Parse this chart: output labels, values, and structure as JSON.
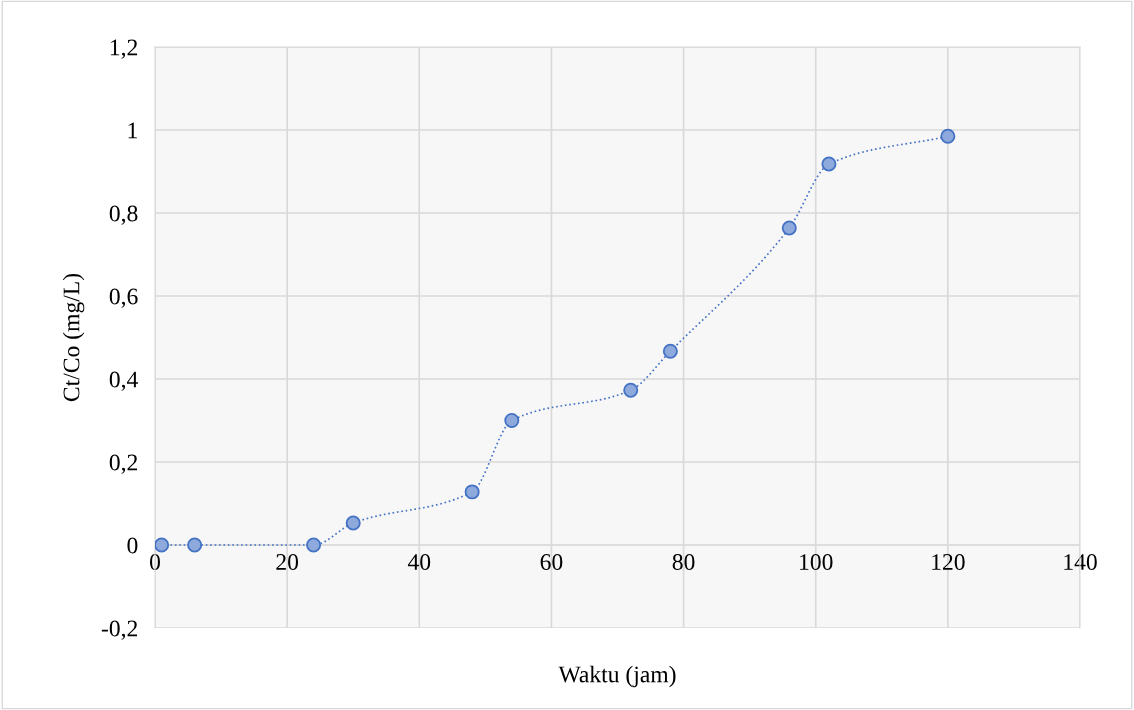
{
  "chart_data": {
    "type": "line",
    "xlabel": "Waktu (jam)",
    "ylabel": "Ct/Co (mg/L)",
    "x": [
      1,
      6,
      24,
      30,
      48,
      54,
      72,
      78,
      96,
      102,
      120
    ],
    "series": [
      {
        "color": "#4472c4",
        "values": [
          0,
          0,
          0,
          0.053,
          0.128,
          0.3,
          0.373,
          0.467,
          0.764,
          0.918,
          0.985
        ]
      }
    ],
    "xlim": [
      0,
      140
    ],
    "xticks": [
      0,
      20,
      40,
      60,
      80,
      100,
      120,
      140
    ],
    "ylim": [
      -0.2,
      1.2
    ],
    "yticks": [
      {
        "value": -0.2,
        "label": "-0,2"
      },
      {
        "value": 0,
        "label": "0"
      },
      {
        "value": 0.2,
        "label": "0,2"
      },
      {
        "value": 0.4,
        "label": "0,4"
      },
      {
        "value": 0.6,
        "label": "0,6"
      },
      {
        "value": 0.8,
        "label": "0,8"
      },
      {
        "value": 1,
        "label": "1"
      },
      {
        "value": 1.2,
        "label": "1,2"
      }
    ],
    "grid": true,
    "legend": false,
    "marker": "circle",
    "line_style": "dotted"
  }
}
